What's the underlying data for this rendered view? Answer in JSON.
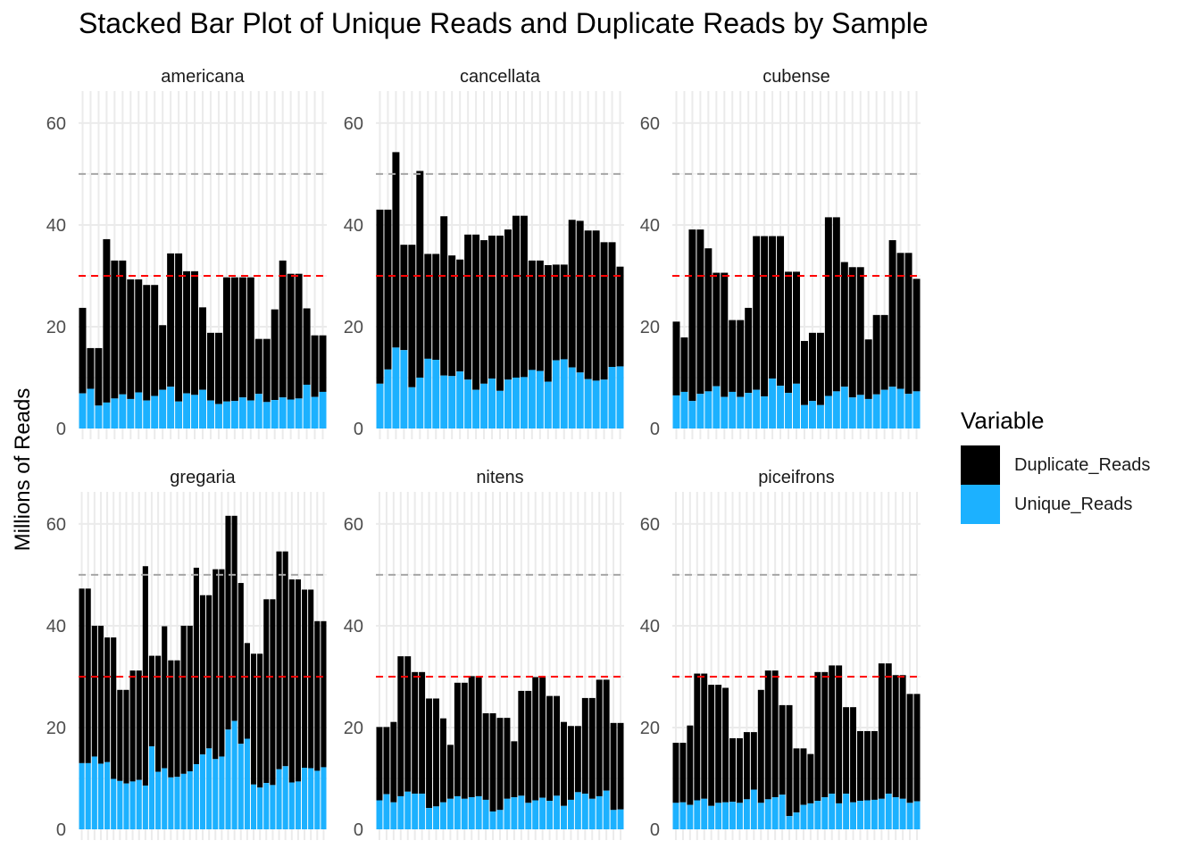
{
  "chart_data": {
    "type": "bar",
    "stacked": true,
    "title": "Stacked Bar Plot of Unique Reads and Duplicate Reads by Sample",
    "xlabel": "",
    "ylabel": "Millions of Reads",
    "ylim": [
      0,
      65
    ],
    "yticks": [
      "0",
      "20",
      "40",
      "60"
    ],
    "reference_lines": [
      {
        "value": 50,
        "color": "#a6a6a6",
        "style": "dashed"
      },
      {
        "value": 30,
        "color": "#ff0000",
        "style": "dashed"
      }
    ],
    "legend": {
      "title": "Variable",
      "position": "right",
      "items": [
        {
          "name": "Duplicate_Reads",
          "color": "#000000"
        },
        {
          "name": "Unique_Reads",
          "color": "#1cb1ff"
        }
      ]
    },
    "panels": [
      {
        "name": "americana",
        "totals": [
          23.7,
          15.8,
          15.8,
          37.2,
          33.0,
          33.0,
          29.3,
          29.3,
          28.2,
          28.2,
          20.3,
          34.4,
          34.4,
          30.9,
          30.9,
          23.8,
          18.8,
          18.8,
          29.7,
          29.7,
          29.7,
          29.7,
          17.6,
          17.6,
          23.4,
          33.0,
          30.4,
          30.4,
          23.6,
          18.3,
          18.3
        ],
        "unique": [
          6.9,
          7.8,
          4.5,
          5.1,
          5.9,
          6.7,
          5.8,
          7.1,
          5.5,
          6.4,
          7.6,
          8.2,
          5.3,
          6.9,
          6.6,
          7.6,
          5.5,
          4.8,
          5.3,
          5.4,
          6.1,
          5.5,
          6.8,
          5.2,
          5.6,
          6.1,
          5.7,
          5.9,
          8.6,
          6.2,
          7.2
        ]
      },
      {
        "name": "cancellata",
        "totals": [
          43.0,
          43.0,
          54.3,
          36.1,
          36.1,
          50.6,
          34.3,
          34.3,
          41.7,
          34.0,
          33.2,
          38.1,
          38.1,
          37.0,
          37.9,
          37.9,
          39.1,
          41.8,
          41.8,
          33.0,
          33.0,
          32.1,
          32.2,
          32.2,
          41.0,
          40.8,
          38.9,
          38.9,
          36.6,
          36.6,
          31.8
        ],
        "unique": [
          8.8,
          11.6,
          15.9,
          15.4,
          8.1,
          10.0,
          13.7,
          13.5,
          10.4,
          10.3,
          11.2,
          9.6,
          7.6,
          8.8,
          9.8,
          7.4,
          9.6,
          10.0,
          10.1,
          11.5,
          11.3,
          9.2,
          13.4,
          13.6,
          12.0,
          11.0,
          9.7,
          9.4,
          9.6,
          12.1,
          12.2
        ]
      },
      {
        "name": "cubense",
        "totals": [
          21.0,
          17.9,
          39.1,
          39.1,
          35.4,
          30.6,
          30.6,
          21.3,
          21.3,
          23.7,
          37.8,
          37.8,
          37.8,
          37.8,
          30.8,
          30.8,
          17.2,
          18.8,
          18.8,
          41.5,
          41.5,
          32.7,
          31.7,
          31.7,
          17.5,
          22.3,
          22.3,
          37.0,
          34.5,
          34.5,
          29.4
        ],
        "unique": [
          6.5,
          7.2,
          5.4,
          6.8,
          7.3,
          8.3,
          6.2,
          7.2,
          6.2,
          7.0,
          7.6,
          6.3,
          9.8,
          8.4,
          7.0,
          8.8,
          4.6,
          5.4,
          4.6,
          6.4,
          7.3,
          8.2,
          6.1,
          6.6,
          5.8,
          6.7,
          7.6,
          8.2,
          7.8,
          6.8,
          7.3
        ]
      },
      {
        "name": "gregaria",
        "totals": [
          47.3,
          47.3,
          40.0,
          40.0,
          37.7,
          37.7,
          27.4,
          27.4,
          31.2,
          31.2,
          51.7,
          34.1,
          34.1,
          39.9,
          33.2,
          33.2,
          40.0,
          40.0,
          51.4,
          46.0,
          46.0,
          51.1,
          51.1,
          61.6,
          61.6,
          48.4,
          36.6,
          34.5,
          34.5,
          45.2,
          45.2,
          54.6,
          54.6,
          49.1,
          49.1,
          47.1,
          47.1,
          40.9,
          40.9
        ],
        "unique": [
          13.0,
          13.0,
          14.3,
          12.9,
          13.2,
          9.9,
          9.5,
          9.0,
          9.4,
          9.7,
          8.6,
          16.3,
          11.3,
          12.0,
          10.2,
          10.3,
          10.9,
          11.4,
          12.8,
          14.7,
          15.9,
          13.8,
          14.3,
          19.6,
          21.3,
          16.8,
          17.8,
          8.8,
          8.2,
          9.1,
          8.7,
          11.8,
          12.4,
          9.2,
          9.4,
          12.1,
          12.0,
          11.5,
          12.2
        ]
      },
      {
        "name": "nitens",
        "totals": [
          20.1,
          20.1,
          21.1,
          34.0,
          34.0,
          30.9,
          30.9,
          25.7,
          25.7,
          21.8,
          16.6,
          28.8,
          28.8,
          30.1,
          30.1,
          22.8,
          22.8,
          21.9,
          21.9,
          17.3,
          27.2,
          27.2,
          29.9,
          29.9,
          26.2,
          26.2,
          21.1,
          20.3,
          20.3,
          25.8,
          25.8,
          29.4,
          29.4,
          20.9,
          20.9
        ],
        "unique": [
          5.7,
          6.9,
          5.3,
          6.5,
          7.4,
          7.0,
          7.0,
          4.2,
          4.5,
          5.3,
          6.0,
          6.5,
          6.0,
          6.3,
          6.5,
          5.8,
          3.5,
          3.8,
          6.0,
          6.3,
          6.6,
          5.2,
          5.7,
          6.2,
          5.6,
          6.6,
          4.6,
          5.8,
          7.3,
          7.0,
          6.0,
          6.5,
          7.6,
          3.8,
          3.9
        ]
      },
      {
        "name": "piceifrons",
        "totals": [
          17.0,
          17.0,
          20.4,
          30.6,
          30.6,
          28.4,
          28.4,
          27.8,
          17.9,
          17.9,
          19.1,
          19.1,
          27.4,
          31.2,
          31.2,
          24.4,
          24.4,
          15.9,
          15.9,
          14.8,
          30.9,
          30.9,
          32.2,
          32.2,
          24.0,
          24.0,
          19.3,
          19.3,
          19.3,
          32.6,
          32.6,
          30.3,
          30.3,
          26.6,
          26.6
        ],
        "unique": [
          5.2,
          5.3,
          4.8,
          5.7,
          6.0,
          4.6,
          5.2,
          5.3,
          5.4,
          5.2,
          5.9,
          7.8,
          5.2,
          5.9,
          6.3,
          6.8,
          2.6,
          3.3,
          4.8,
          5.1,
          5.6,
          6.3,
          7.0,
          5.1,
          7.0,
          5.3,
          5.6,
          5.7,
          5.8,
          6.0,
          7.0,
          6.3,
          6.0,
          5.2,
          5.5
        ]
      }
    ]
  }
}
